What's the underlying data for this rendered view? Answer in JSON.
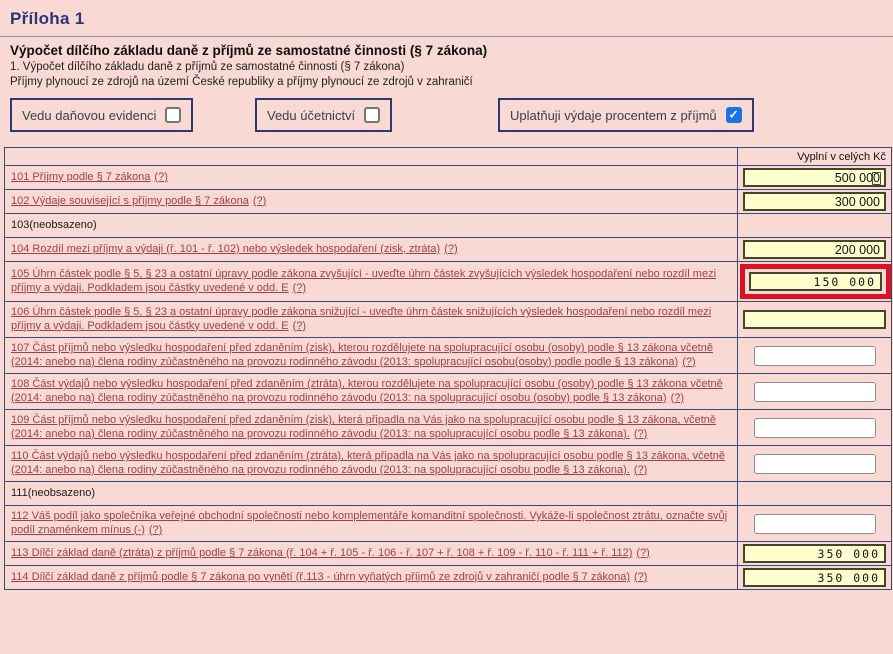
{
  "page": {
    "title": "Příloha 1",
    "heading": "Výpočet dílčího základu daně z příjmů ze samostatné činnosti (§ 7 zákona)",
    "subheading1": "1. Výpočet dílčího základu daně z příjmů ze samostatné činnosti (§ 7 zákona)",
    "subheading2": "Příjmy plynoucí ze zdrojů na území České republiky a příjmy plynoucí ze zdrojů v zahraničí"
  },
  "checkboxes": [
    {
      "label": "Vedu daňovou evidenci",
      "checked": false
    },
    {
      "label": "Vedu účetnictví",
      "checked": false
    },
    {
      "label": "Uplatňuji výdaje procentem z příjmů",
      "checked": true
    }
  ],
  "icons": {
    "checkmark": "✓",
    "help": "(?)"
  },
  "table": {
    "amount_header": "Vyplní v celých Kč",
    "rows": [
      {
        "num": "101",
        "text": "101 Příjmy podle § 7 zákona",
        "value": "500 000"
      },
      {
        "num": "102",
        "text": "102 Výdaje související s příjmy podle § 7 zákona",
        "value": "300 000"
      },
      {
        "num": "103",
        "text": "103(neobsazeno)",
        "value": ""
      },
      {
        "num": "104",
        "text": "104 Rozdíl mezi příjmy a výdaji (ř. 101 - ř. 102) nebo výsledek hospodaření (zisk, ztráta)",
        "value": "200 000"
      },
      {
        "num": "105",
        "text": "105 Úhrn částek podle § 5, § 23 a ostatní úpravy podle zákona zvyšující - uveďte úhrn částek zvyšujících výsledek hospodaření nebo rozdíl mezi příjmy a výdaji. Podkladem jsou částky uvedené v odd. E",
        "value": "150 000"
      },
      {
        "num": "106",
        "text": "106 Úhrn částek podle § 5, § 23 a ostatní úpravy podle zákona snižující - uveďte úhrn částek snižujících výsledek hospodaření nebo rozdíl mezi příjmy a výdaji. Podkladem jsou částky uvedené v odd. E",
        "value": ""
      },
      {
        "num": "107",
        "text": "107 Část příjmů nebo výsledku hospodaření před zdaněním (zisk), kterou rozdělujete na spolupracující osobu (osoby) podle § 13 zákona včetně (2014: anebo na) člena rodiny zúčastněného na provozu rodinného závodu (2013: spolupracující osobu(osoby) podle podle § 13 zákona)",
        "value": ""
      },
      {
        "num": "108",
        "text": "108 Část výdajů nebo výsledku hospodaření před zdaněním (ztráta), kterou rozdělujete na spolupracující osobu (osoby) podle § 13 zákona včetně (2014: anebo na) člena rodiny zúčastněného na provozu rodinného závodu (2013: na spolupracující osobu (osoby) podle § 13 zákona)",
        "value": ""
      },
      {
        "num": "109",
        "text": "109 Část příjmů nebo výsledku hospodaření před zdaněním (zisk), která připadla na Vás jako na spolupracující osobu podle § 13 zákona, včetně (2014: anebo na) člena rodiny zúčastněného na provozu rodinného závodu (2013: na spolupracující osobu podle § 13 zákona).",
        "value": ""
      },
      {
        "num": "110",
        "text": "110 Část výdajů nebo výsledku hospodaření před zdaněním (ztráta), která připadla na Vás jako na spolupracující osobu podle § 13 zákona, včetně (2014: anebo na) člena rodiny zúčastněného na provozu rodinného závodu (2013: na spolupracující osobu podle § 13 zákona).",
        "value": ""
      },
      {
        "num": "111",
        "text": "111(neobsazeno)",
        "value": ""
      },
      {
        "num": "112",
        "text": "112 Váš podíl jako společníka veřejné obchodní společnosti nebo komplementáře komanditní společnosti. Vykáže-li společnost ztrátu, označte svůj podíl znaménkem mínus (-)",
        "value": ""
      },
      {
        "num": "113",
        "text": "113 Dílčí základ daně (ztráta) z příjmů podle § 7 zákona (ř. 104 + ř. 105 - ř. 106 - ř. 107 + ř. 108 + ř. 109 - ř. 110 - ř. 111 + ř. 112)",
        "value": "350 000"
      },
      {
        "num": "114",
        "text": "114 Dílčí základ daně z příjmů podle § 7 zákona po vynětí (ř.113 - úhrn vyňatých příjmů ze zdrojů v zahraničí podle § 7 zákona)",
        "value": "350 000"
      }
    ]
  },
  "colors": {
    "page_background": "#f9d9d3",
    "title_navy": "#2b3674",
    "table_border_navy": "#3c4875",
    "link_maroon": "#9e414d",
    "field_yellow": "#ffffce",
    "highlight_red": "#dd1122",
    "checkbox_blue": "#1a73e8"
  }
}
